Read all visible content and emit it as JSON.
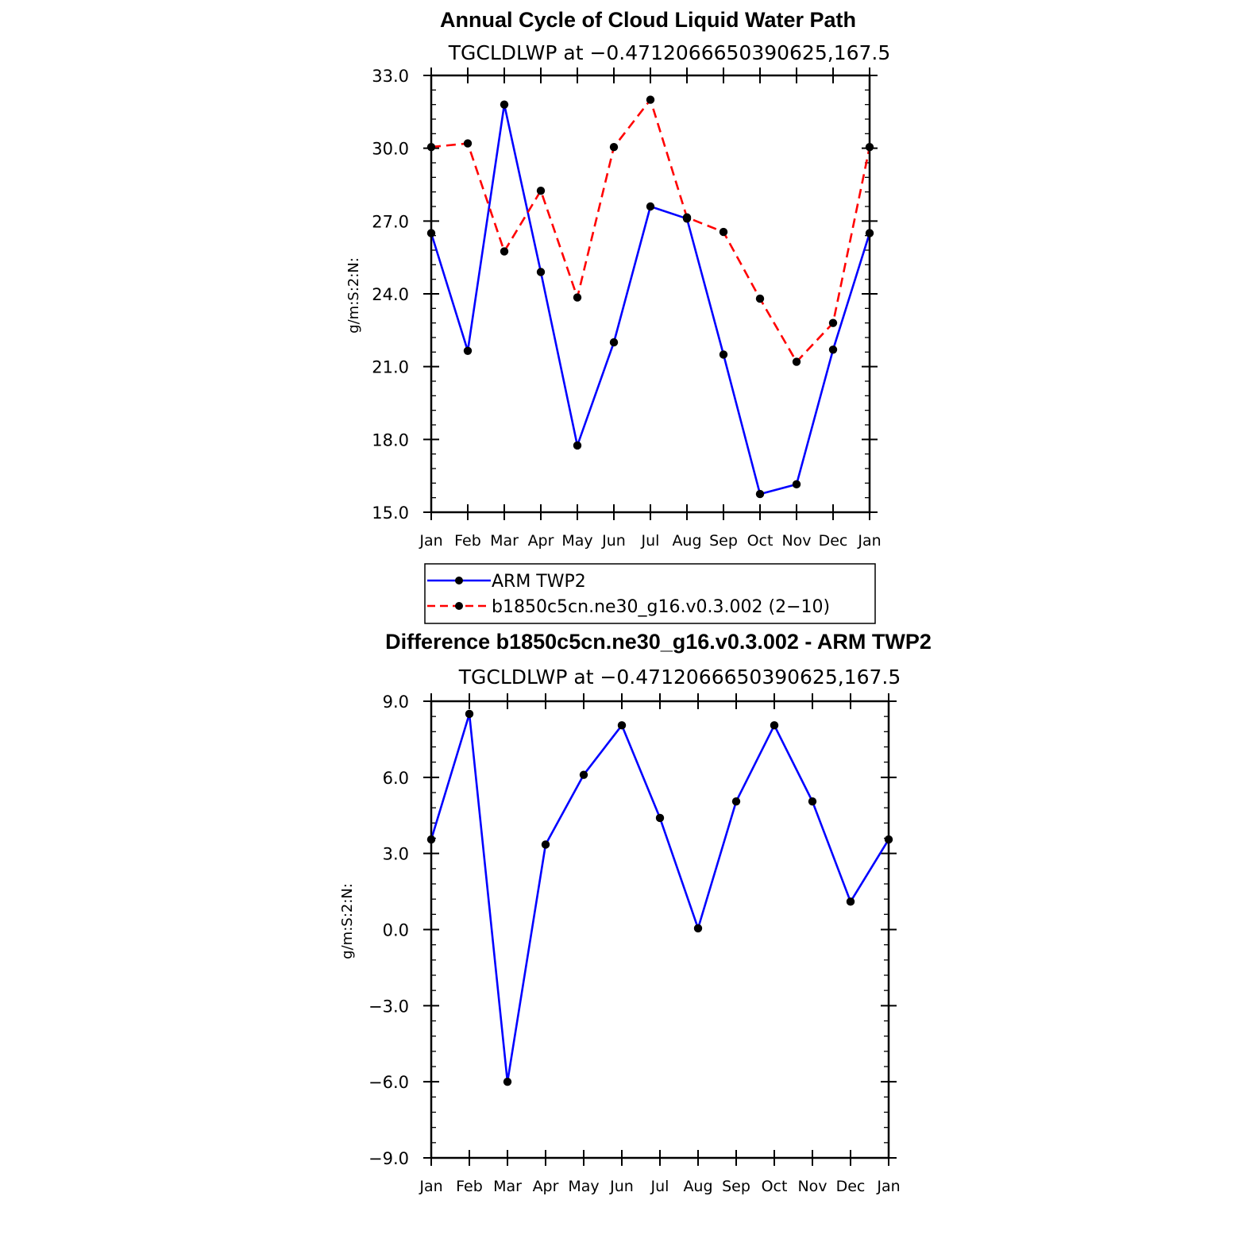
{
  "chart_data": [
    {
      "type": "line",
      "title": "Annual Cycle of Cloud Liquid Water Path",
      "subtitle": "TGCLDLWP at −0.4712066650390625,167.5",
      "ylabel": "g/m:S:2:N:",
      "xlabel": "",
      "ylim": [
        15.0,
        33.0
      ],
      "yticks": [
        15.0,
        18.0,
        21.0,
        24.0,
        27.0,
        30.0,
        33.0
      ],
      "ytick_labels": [
        "15.0",
        "18.0",
        "21.0",
        "24.0",
        "27.0",
        "30.0",
        "33.0"
      ],
      "categories": [
        "Jan",
        "Feb",
        "Mar",
        "Apr",
        "May",
        "Jun",
        "Jul",
        "Aug",
        "Sep",
        "Oct",
        "Nov",
        "Dec",
        "Jan"
      ],
      "grid": false,
      "legend_position": "below",
      "series": [
        {
          "name": "ARM TWP2",
          "color": "#0000ff",
          "dash": "solid",
          "values": [
            26.5,
            21.65,
            31.8,
            24.9,
            17.75,
            22.0,
            27.6,
            27.1,
            21.5,
            15.75,
            16.15,
            21.7,
            26.5
          ]
        },
        {
          "name": "b1850c5cn.ne30_g16.v0.3.002 (2−10)",
          "color": "#ff0000",
          "dash": "dashed",
          "values": [
            30.05,
            30.2,
            25.75,
            28.25,
            23.85,
            30.05,
            32.0,
            27.15,
            26.55,
            23.8,
            21.2,
            22.8,
            30.05
          ]
        }
      ]
    },
    {
      "type": "line",
      "title": "Difference b1850c5cn.ne30_g16.v0.3.002 - ARM TWP2",
      "subtitle": "TGCLDLWP at −0.4712066650390625,167.5",
      "ylabel": "g/m:S:2:N:",
      "xlabel": "",
      "ylim": [
        -9.0,
        9.0
      ],
      "yticks": [
        -9.0,
        -6.0,
        -3.0,
        0.0,
        3.0,
        6.0,
        9.0
      ],
      "ytick_labels": [
        "−9.0",
        "−6.0",
        "−3.0",
        "0.0",
        "3.0",
        "6.0",
        "9.0"
      ],
      "categories": [
        "Jan",
        "Feb",
        "Mar",
        "Apr",
        "May",
        "Jun",
        "Jul",
        "Aug",
        "Sep",
        "Oct",
        "Nov",
        "Dec",
        "Jan"
      ],
      "grid": false,
      "series": [
        {
          "color": "#0000ff",
          "dash": "solid",
          "values": [
            3.55,
            8.5,
            -6.0,
            3.35,
            6.1,
            8.05,
            4.4,
            0.05,
            5.05,
            8.05,
            5.05,
            1.1,
            3.55
          ]
        }
      ]
    }
  ]
}
